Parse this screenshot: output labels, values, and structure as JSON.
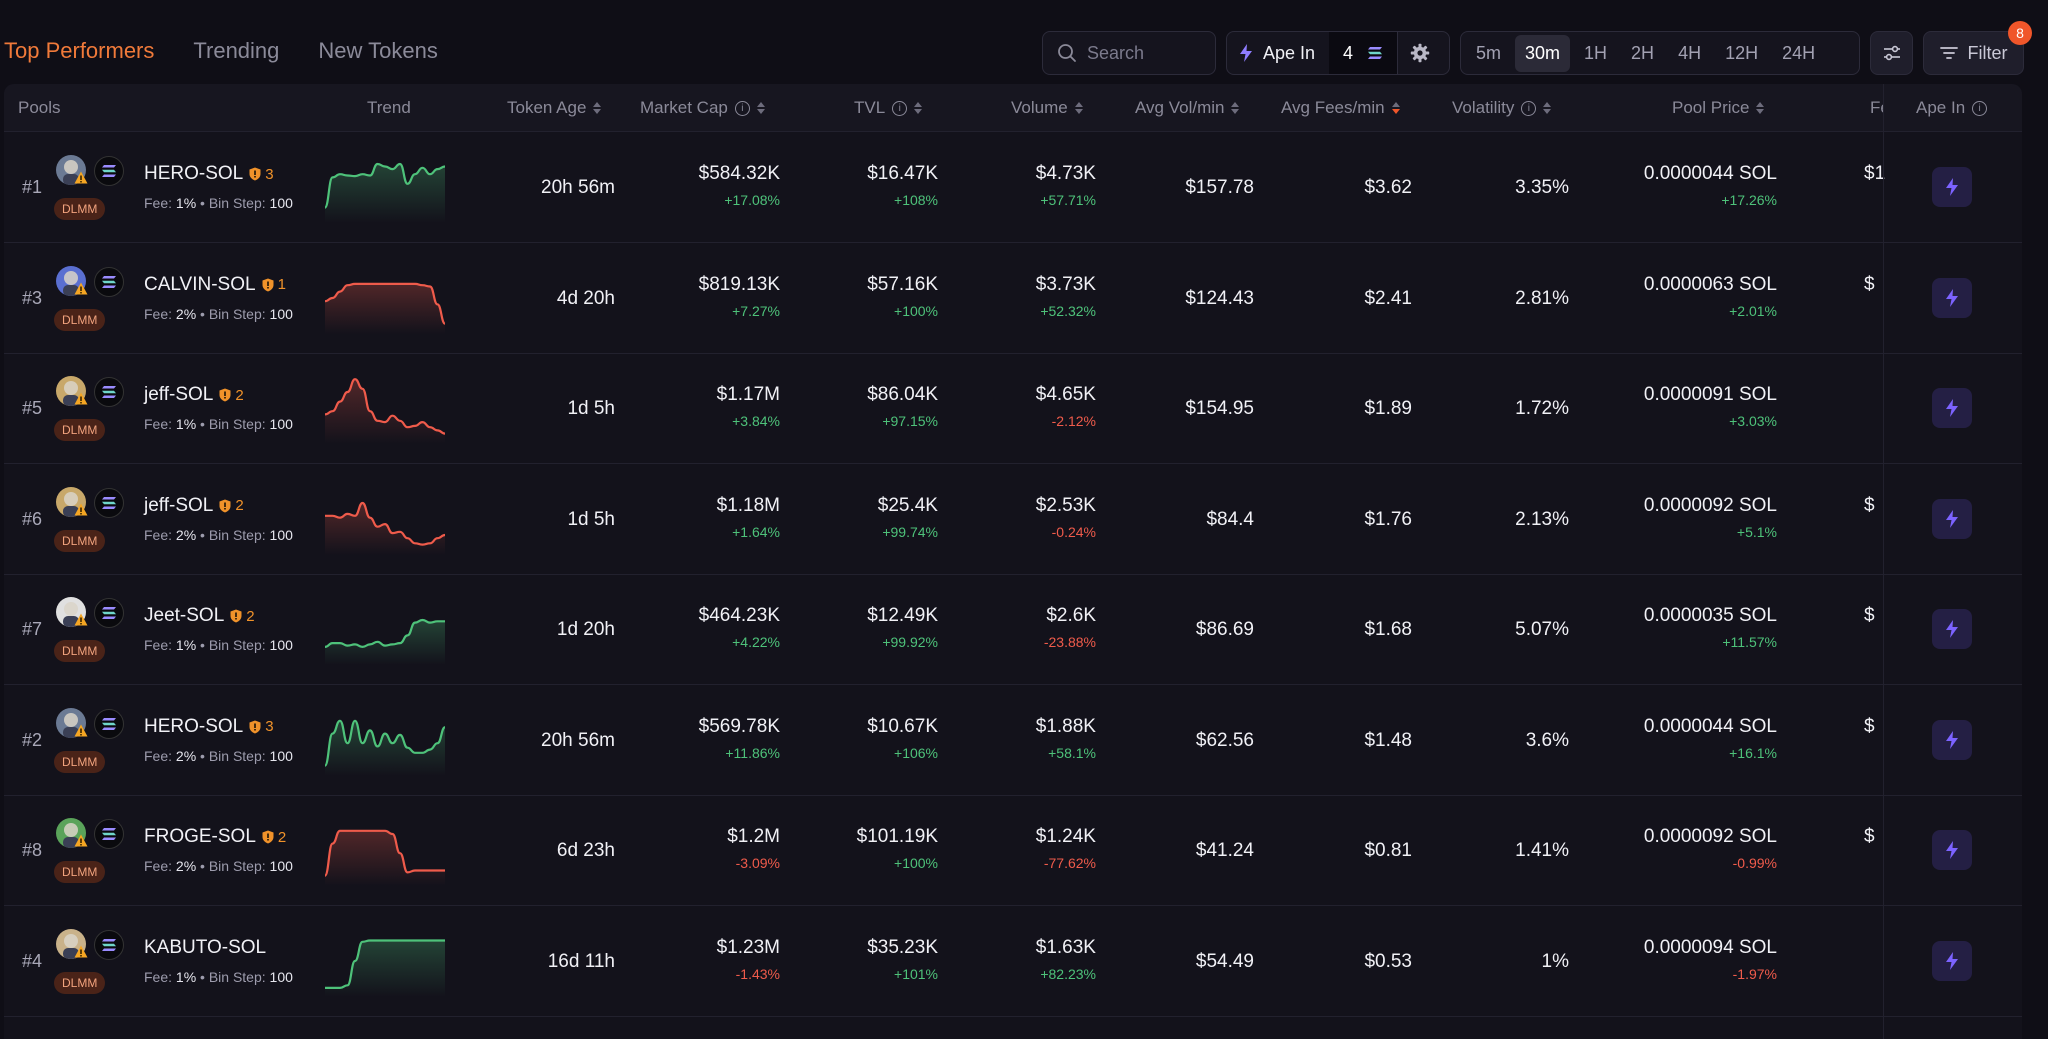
{
  "tabs": [
    {
      "label": "Top Performers",
      "active": true
    },
    {
      "label": "Trending",
      "active": false
    },
    {
      "label": "New Tokens",
      "active": false
    }
  ],
  "search": {
    "placeholder": "Search"
  },
  "ape_in": {
    "label": "Ape In",
    "amount": "4"
  },
  "timeframes": [
    {
      "label": "5m",
      "active": false
    },
    {
      "label": "30m",
      "active": true
    },
    {
      "label": "1H",
      "active": false
    },
    {
      "label": "2H",
      "active": false
    },
    {
      "label": "4H",
      "active": false
    },
    {
      "label": "12H",
      "active": false
    },
    {
      "label": "24H",
      "active": false
    }
  ],
  "filter": {
    "label": "Filter",
    "badge": "8"
  },
  "columns": {
    "pools": "Pools",
    "trend": "Trend",
    "token_age": "Token Age",
    "market_cap": "Market Cap",
    "tvl": "TVL",
    "volume": "Volume",
    "avg_vol": "Avg Vol/min",
    "avg_fees": "Avg Fees/min",
    "volatility": "Volatility",
    "pool_price": "Pool Price",
    "fees": "Fe",
    "ape_in": "Ape In"
  },
  "rows": [
    {
      "rank": "#1",
      "name": "HERO-SOL",
      "shield": "3",
      "dlmm": "DLMM",
      "fee": "1%",
      "bin_step": "100",
      "trend": [
        0.82,
        0.35,
        0.3,
        0.32,
        0.33,
        0.3,
        0.32,
        0.14,
        0.18,
        0.22,
        0.14,
        0.45,
        0.3,
        0.2,
        0.3,
        0.22,
        0.18
      ],
      "trend_dir": "up",
      "token_age": "20h 56m",
      "market_cap": "$584.32K",
      "market_cap_chg": "+17.08%",
      "tvl": "$16.47K",
      "tvl_chg": "+108%",
      "volume": "$4.73K",
      "volume_chg": "+57.71%",
      "avg_vol": "$157.78",
      "avg_fees": "$3.62",
      "volatility": "3.35%",
      "pool_price": "0.0000044 SOL",
      "pool_price_chg": "+17.26%",
      "fees_clip": "$1"
    },
    {
      "rank": "#3",
      "name": "CALVIN-SOL",
      "shield": "1",
      "dlmm": "DLMM",
      "fee": "2%",
      "bin_step": "100",
      "trend": [
        0.55,
        0.5,
        0.4,
        0.3,
        0.28,
        0.28,
        0.28,
        0.28,
        0.28,
        0.28,
        0.28,
        0.28,
        0.28,
        0.3,
        0.32,
        0.6,
        0.9
      ],
      "trend_dir": "down",
      "token_age": "4d 20h",
      "market_cap": "$819.13K",
      "market_cap_chg": "+7.27%",
      "tvl": "$57.16K",
      "tvl_chg": "+100%",
      "volume": "$3.73K",
      "volume_chg": "+52.32%",
      "avg_vol": "$124.43",
      "avg_fees": "$2.41",
      "volatility": "2.81%",
      "pool_price": "0.0000063 SOL",
      "pool_price_chg": "+2.01%",
      "fees_clip": "$"
    },
    {
      "rank": "#5",
      "name": "jeff-SOL",
      "shield": "2",
      "dlmm": "DLMM",
      "fee": "1%",
      "bin_step": "100",
      "trend": [
        0.6,
        0.55,
        0.4,
        0.25,
        0.05,
        0.2,
        0.55,
        0.7,
        0.72,
        0.62,
        0.7,
        0.8,
        0.78,
        0.72,
        0.8,
        0.85,
        0.9
      ],
      "trend_dir": "down",
      "token_age": "1d 5h",
      "market_cap": "$1.17M",
      "market_cap_chg": "+3.84%",
      "tvl": "$86.04K",
      "tvl_chg": "+97.15%",
      "volume": "$4.65K",
      "volume_chg": "-2.12%",
      "avg_vol": "$154.95",
      "avg_fees": "$1.89",
      "volatility": "1.72%",
      "pool_price": "0.0000091 SOL",
      "pool_price_chg": "+3.03%",
      "fees_clip": ""
    },
    {
      "rank": "#6",
      "name": "jeff-SOL",
      "shield": "2",
      "dlmm": "DLMM",
      "fee": "2%",
      "bin_step": "100",
      "trend": [
        0.45,
        0.45,
        0.48,
        0.42,
        0.45,
        0.25,
        0.48,
        0.62,
        0.58,
        0.72,
        0.7,
        0.8,
        0.88,
        0.9,
        0.88,
        0.8,
        0.75
      ],
      "trend_dir": "down",
      "token_age": "1d 5h",
      "market_cap": "$1.18M",
      "market_cap_chg": "+1.64%",
      "tvl": "$25.4K",
      "tvl_chg": "+99.74%",
      "volume": "$2.53K",
      "volume_chg": "-0.24%",
      "avg_vol": "$84.4",
      "avg_fees": "$1.76",
      "volatility": "2.13%",
      "pool_price": "0.0000092 SOL",
      "pool_price_chg": "+5.1%",
      "fees_clip": "$"
    },
    {
      "rank": "#7",
      "name": "Jeet-SOL",
      "shield": "2",
      "dlmm": "DLMM",
      "fee": "1%",
      "bin_step": "100",
      "trend": [
        0.78,
        0.72,
        0.72,
        0.76,
        0.74,
        0.78,
        0.74,
        0.7,
        0.76,
        0.74,
        0.72,
        0.6,
        0.4,
        0.36,
        0.4,
        0.38,
        0.38
      ],
      "trend_dir": "up",
      "token_age": "1d 20h",
      "market_cap": "$464.23K",
      "market_cap_chg": "+4.22%",
      "tvl": "$12.49K",
      "tvl_chg": "+99.92%",
      "volume": "$2.6K",
      "volume_chg": "-23.88%",
      "avg_vol": "$86.69",
      "avg_fees": "$1.68",
      "volatility": "5.07%",
      "pool_price": "0.0000035 SOL",
      "pool_price_chg": "+11.57%",
      "fees_clip": "$"
    },
    {
      "rank": "#2",
      "name": "HERO-SOL",
      "shield": "3",
      "dlmm": "DLMM",
      "fee": "2%",
      "bin_step": "100",
      "trend": [
        0.9,
        0.4,
        0.2,
        0.55,
        0.2,
        0.55,
        0.35,
        0.6,
        0.4,
        0.55,
        0.42,
        0.62,
        0.7,
        0.7,
        0.65,
        0.55,
        0.3
      ],
      "trend_dir": "up",
      "token_age": "20h 56m",
      "market_cap": "$569.78K",
      "market_cap_chg": "+11.86%",
      "tvl": "$10.67K",
      "tvl_chg": "+106%",
      "volume": "$1.88K",
      "volume_chg": "+58.1%",
      "avg_vol": "$62.56",
      "avg_fees": "$1.48",
      "volatility": "3.6%",
      "pool_price": "0.0000044 SOL",
      "pool_price_chg": "+16.1%",
      "fees_clip": "$"
    },
    {
      "rank": "#8",
      "name": "FROGE-SOL",
      "shield": "2",
      "dlmm": "DLMM",
      "fee": "2%",
      "bin_step": "100",
      "trend": [
        0.9,
        0.4,
        0.2,
        0.2,
        0.2,
        0.2,
        0.2,
        0.2,
        0.2,
        0.25,
        0.55,
        0.85,
        0.82,
        0.82,
        0.82,
        0.82,
        0.82
      ],
      "trend_dir": "down",
      "token_age": "6d 23h",
      "market_cap": "$1.2M",
      "market_cap_chg": "-3.09%",
      "tvl": "$101.19K",
      "tvl_chg": "+100%",
      "volume": "$1.24K",
      "volume_chg": "-77.62%",
      "avg_vol": "$41.24",
      "avg_fees": "$0.81",
      "volatility": "1.41%",
      "pool_price": "0.0000092 SOL",
      "pool_price_chg": "-0.99%",
      "fees_clip": "$"
    },
    {
      "rank": "#4",
      "name": "KABUTO-SOL",
      "shield": "",
      "dlmm": "DLMM",
      "fee": "1%",
      "bin_step": "100",
      "trend": [
        0.92,
        0.92,
        0.92,
        0.88,
        0.5,
        0.2,
        0.18,
        0.18,
        0.18,
        0.18,
        0.18,
        0.18,
        0.18,
        0.18,
        0.18,
        0.18,
        0.18
      ],
      "trend_dir": "up",
      "token_age": "16d 11h",
      "market_cap": "$1.23M",
      "market_cap_chg": "-1.43%",
      "tvl": "$35.23K",
      "tvl_chg": "+101%",
      "volume": "$1.63K",
      "volume_chg": "+82.23%",
      "avg_vol": "$54.49",
      "avg_fees": "$0.53",
      "volatility": "1%",
      "pool_price": "0.0000094 SOL",
      "pool_price_chg": "-1.97%",
      "fees_clip": ""
    }
  ],
  "icons": {
    "search": "search-icon",
    "lightning": "lightning-icon",
    "solana": "solana-icon",
    "gear": "gear-icon",
    "sliders": "sliders-icon",
    "filter": "filter-lines-icon",
    "shield": "shield-icon",
    "info": "info-icon",
    "warning": "warning-icon"
  },
  "colors": {
    "accent_orange": "#f07a3a",
    "positive": "#4ec27a",
    "negative": "#ef5b4b",
    "shield": "#f0922a",
    "ape_button_bg": "#241f44",
    "ape_button_icon": "#7c63ff"
  }
}
